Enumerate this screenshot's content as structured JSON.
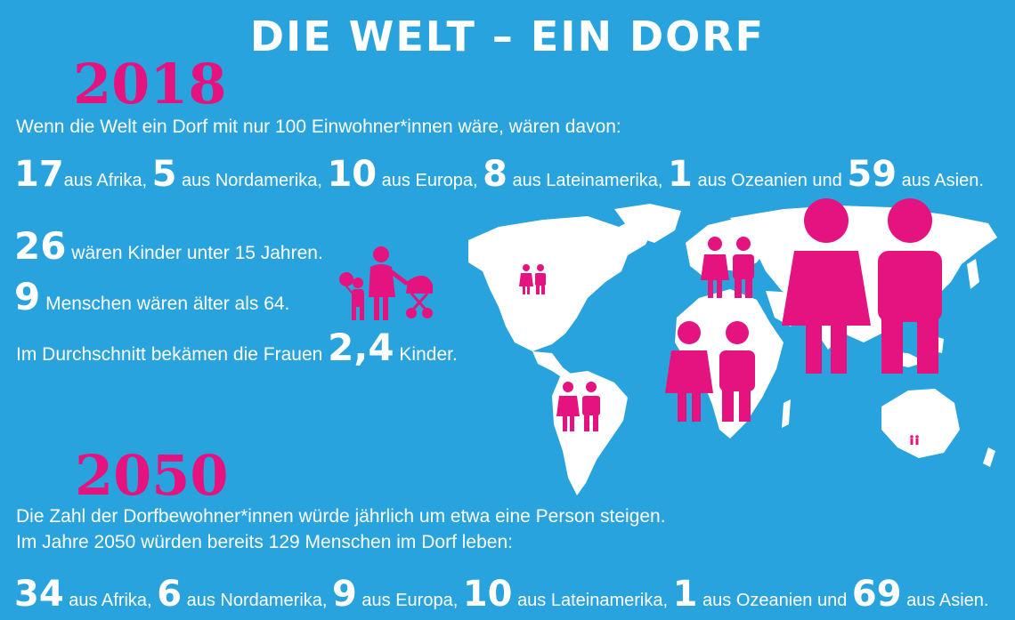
{
  "title": "DIE WELT – EIN DORF",
  "colors": {
    "background": "#29a3dd",
    "accent": "#e5137f",
    "text": "#ffffff"
  },
  "section_2018": {
    "year": "2018",
    "intro": "Wenn die Welt ein Dorf mit nur 100 Einwohner*innen wäre, wären davon:",
    "regions": [
      {
        "value": "17",
        "label": "aus Afrika,"
      },
      {
        "value": "5",
        "label": "aus Nordamerika,"
      },
      {
        "value": "10",
        "label": "aus Europa,"
      },
      {
        "value": "8",
        "label": "aus Lateinamerika,"
      },
      {
        "value": "1",
        "label": "aus Ozeanien und"
      },
      {
        "value": "59",
        "label": "aus Asien."
      }
    ],
    "children_value": "26",
    "children_text": "wären Kinder unter 15 Jahren.",
    "elderly_value": "9",
    "elderly_text": "Menschen wären älter als 64.",
    "fertility_prefix": "Im Durchschnitt bekämen die Frauen",
    "fertility_value": "2,4",
    "fertility_suffix": "Kinder."
  },
  "section_2050": {
    "year": "2050",
    "line1": "Die Zahl der Dorfbewohner*innen würde jährlich um etwa eine Person steigen.",
    "line2": "Im Jahre 2050 würden bereits 129 Menschen im Dorf leben:",
    "regions": [
      {
        "value": "34",
        "label": "aus Afrika,"
      },
      {
        "value": "6",
        "label": "aus Nordamerika,"
      },
      {
        "value": "9",
        "label": "aus Europa,"
      },
      {
        "value": "10",
        "label": "aus Lateinamerika,"
      },
      {
        "value": "1",
        "label": "aus Ozeanien und"
      },
      {
        "value": "69",
        "label": "aus Asien."
      }
    ]
  },
  "icons": [
    "family-icon",
    "world-map",
    "couple-icon"
  ]
}
